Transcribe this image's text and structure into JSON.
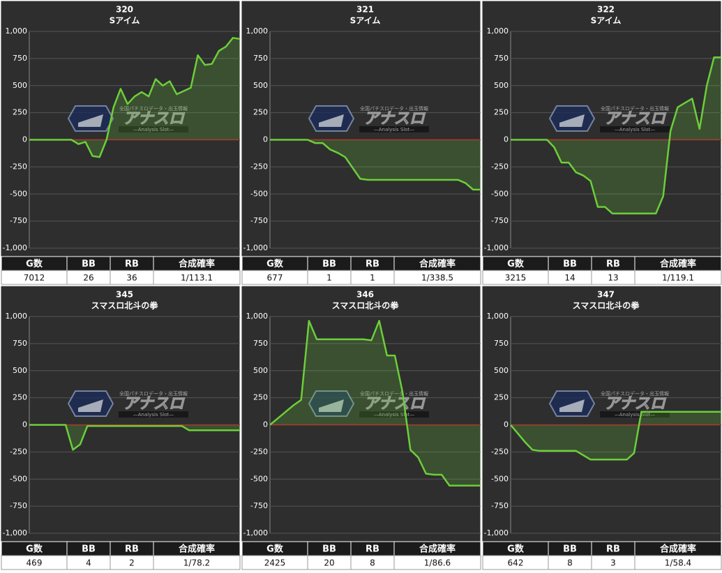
{
  "watermark": {
    "title": "アナスロ",
    "tagline": "全国パチスロデータ・出玉情報",
    "subtitle": "—Analysis Slot—"
  },
  "chart_data": [
    {
      "type": "area",
      "title": "320",
      "subtitle": "Sアイム",
      "color": "#6ccf3a",
      "zero_color": "#b02a2a",
      "values": [
        0,
        0,
        0,
        0,
        0,
        0,
        0,
        -40,
        -20,
        -150,
        -160,
        0,
        300,
        470,
        330,
        400,
        440,
        400,
        560,
        500,
        540,
        420,
        450,
        480,
        780,
        690,
        700,
        820,
        860,
        940,
        930
      ],
      "ylim": [
        -1000,
        1000
      ],
      "yticks": [
        {
          "value": -1000,
          "label": "-1,000"
        },
        -750,
        -500,
        -250,
        0,
        250,
        500,
        750,
        {
          "value": 1000,
          "label": "1,000"
        }
      ],
      "grid": true,
      "stats": {
        "headers": [
          "G数",
          "BB",
          "RB",
          "合成確率"
        ],
        "values": [
          7012,
          26,
          36,
          "1/113.1"
        ]
      }
    },
    {
      "type": "area",
      "title": "321",
      "subtitle": "Sアイム",
      "color": "#6ccf3a",
      "zero_color": "#b02a2a",
      "values": [
        0,
        0,
        0,
        0,
        0,
        0,
        -30,
        -30,
        -90,
        -120,
        -160,
        -260,
        -360,
        -370,
        -370,
        -370,
        -370,
        -370,
        -370,
        -370,
        -370,
        -370,
        -370,
        -370,
        -370,
        -370,
        -400,
        -460,
        -460
      ],
      "ylim": [
        -1000,
        1000
      ],
      "yticks": [
        {
          "value": -1000,
          "label": "-1,000"
        },
        -750,
        -500,
        -250,
        0,
        250,
        500,
        750,
        {
          "value": 1000,
          "label": "1,000"
        }
      ],
      "grid": true,
      "stats": {
        "headers": [
          "G数",
          "BB",
          "RB",
          "合成確率"
        ],
        "values": [
          677,
          1,
          1,
          "1/338.5"
        ]
      }
    },
    {
      "type": "area",
      "title": "322",
      "subtitle": "Sアイム",
      "color": "#6ccf3a",
      "zero_color": "#b02a2a",
      "values": [
        0,
        0,
        0,
        0,
        0,
        0,
        -70,
        -210,
        -210,
        -300,
        -330,
        -380,
        -620,
        -620,
        -680,
        -680,
        -680,
        -680,
        -680,
        -680,
        -680,
        -520,
        80,
        300,
        340,
        380,
        100,
        500,
        760,
        760
      ],
      "ylim": [
        -1000,
        1000
      ],
      "yticks": [
        {
          "value": -1000,
          "label": "-1,000"
        },
        -750,
        -500,
        -250,
        0,
        250,
        500,
        750,
        {
          "value": 1000,
          "label": "1,000"
        }
      ],
      "grid": true,
      "stats": {
        "headers": [
          "G数",
          "BB",
          "RB",
          "合成確率"
        ],
        "values": [
          3215,
          14,
          13,
          "1/119.1"
        ]
      }
    },
    {
      "type": "area",
      "title": "345",
      "subtitle": "スマスロ北斗の拳",
      "color": "#6ccf3a",
      "zero_color": "#b02a2a",
      "values": [
        0,
        0,
        0,
        0,
        0,
        0,
        -230,
        -180,
        -10,
        -10,
        -10,
        -10,
        -10,
        -10,
        -10,
        -10,
        -10,
        -10,
        -10,
        -10,
        -10,
        -10,
        -50,
        -50,
        -50,
        -50,
        -50,
        -50,
        -50,
        -50
      ],
      "ylim": [
        -1000,
        1000
      ],
      "yticks": [
        {
          "value": -1000,
          "label": "-1,000"
        },
        -750,
        -500,
        -250,
        0,
        250,
        500,
        750,
        {
          "value": 1000,
          "label": "1,000"
        }
      ],
      "grid": true,
      "stats": {
        "headers": [
          "G数",
          "BB",
          "RB",
          "合成確率"
        ],
        "values": [
          469,
          4,
          2,
          "1/78.2"
        ]
      }
    },
    {
      "type": "area",
      "title": "346",
      "subtitle": "スマスロ北斗の拳",
      "color": "#6ccf3a",
      "zero_color": "#b02a2a",
      "values": [
        0,
        60,
        120,
        180,
        230,
        960,
        790,
        790,
        790,
        790,
        790,
        790,
        790,
        780,
        960,
        640,
        640,
        300,
        -230,
        -300,
        -450,
        -460,
        -460,
        -560,
        -560,
        -560,
        -560,
        -560
      ],
      "ylim": [
        -1000,
        1000
      ],
      "yticks": [
        {
          "value": -1000,
          "label": "-1,000"
        },
        -750,
        -500,
        -250,
        0,
        250,
        500,
        750,
        {
          "value": 1000,
          "label": "1,000"
        }
      ],
      "grid": true,
      "stats": {
        "headers": [
          "G数",
          "BB",
          "RB",
          "合成確率"
        ],
        "values": [
          2425,
          20,
          8,
          "1/86.6"
        ]
      }
    },
    {
      "type": "area",
      "title": "347",
      "subtitle": "スマスロ北斗の拳",
      "color": "#6ccf3a",
      "zero_color": "#b02a2a",
      "values": [
        0,
        -80,
        -160,
        -230,
        -240,
        -240,
        -240,
        -240,
        -240,
        -240,
        -280,
        -320,
        -320,
        -320,
        -320,
        -320,
        -320,
        -260,
        120,
        120,
        120,
        120,
        120,
        120,
        120,
        120,
        120,
        120,
        120,
        120
      ],
      "ylim": [
        -1000,
        1000
      ],
      "yticks": [
        {
          "value": -1000,
          "label": "-1,000"
        },
        -750,
        -500,
        -250,
        0,
        250,
        500,
        750,
        {
          "value": 1000,
          "label": "1,000"
        }
      ],
      "grid": true,
      "stats": {
        "headers": [
          "G数",
          "BB",
          "RB",
          "合成確率"
        ],
        "values": [
          642,
          8,
          3,
          "1/58.4"
        ]
      }
    }
  ]
}
